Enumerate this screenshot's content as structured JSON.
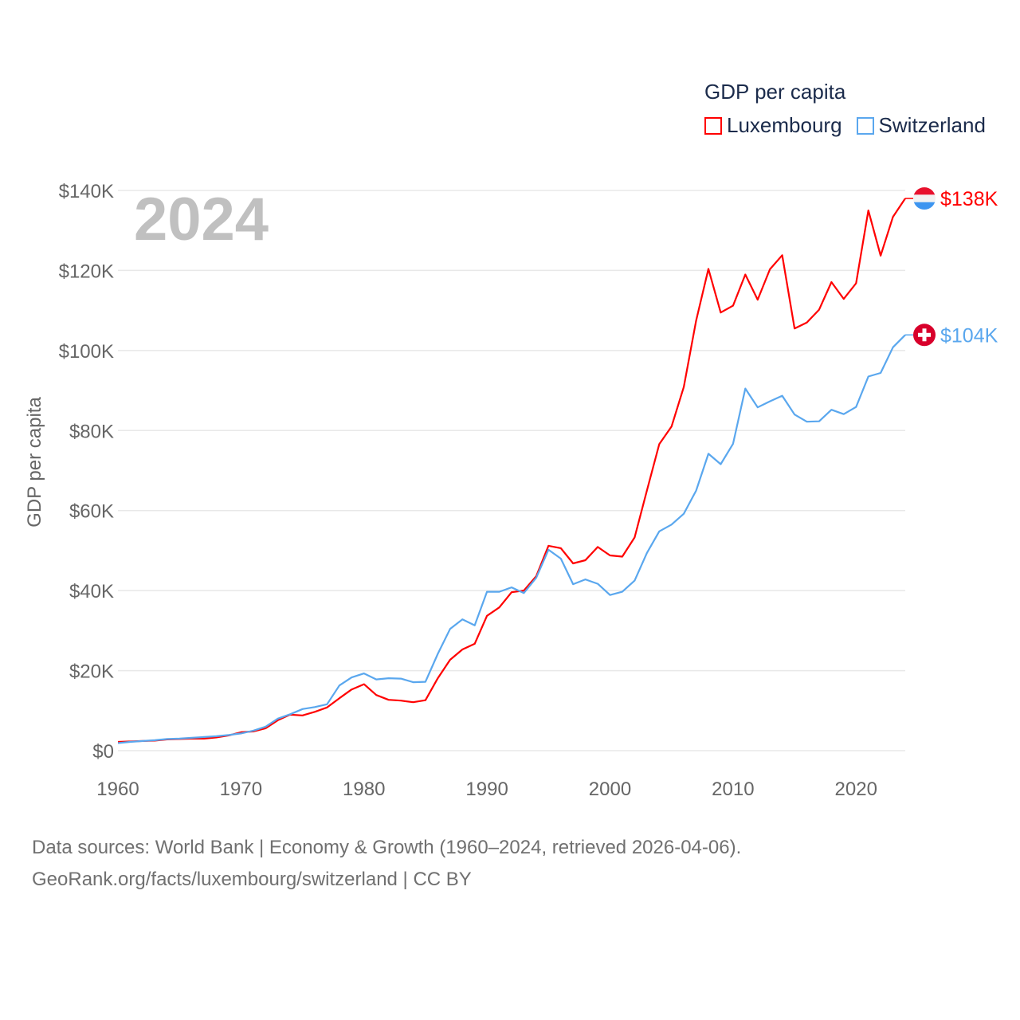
{
  "chart_data": {
    "type": "line",
    "title": "GDP per capita",
    "xlabel": "",
    "ylabel": "GDP per capita",
    "year_overlay": "2024",
    "xlim": [
      1960,
      2024
    ],
    "ylim": [
      0,
      140
    ],
    "x_ticks": [
      1960,
      1970,
      1980,
      1990,
      2000,
      2010,
      2020
    ],
    "x_tick_labels": [
      "1960",
      "1970",
      "1980",
      "1990",
      "2000",
      "2010",
      "2020"
    ],
    "y_ticks": [
      0,
      20,
      40,
      60,
      80,
      100,
      120,
      140
    ],
    "y_tick_labels": [
      "$0",
      "$20K",
      "$40K",
      "$60K",
      "$80K",
      "$100K",
      "$120K",
      "$140K"
    ],
    "grid": true,
    "legend_placement": "top-right",
    "x": [
      1960,
      1961,
      1962,
      1963,
      1964,
      1965,
      1966,
      1967,
      1968,
      1969,
      1970,
      1971,
      1972,
      1973,
      1974,
      1975,
      1976,
      1977,
      1978,
      1979,
      1980,
      1981,
      1982,
      1983,
      1984,
      1985,
      1986,
      1987,
      1988,
      1989,
      1990,
      1991,
      1992,
      1993,
      1994,
      1995,
      1996,
      1997,
      1998,
      1999,
      2000,
      2001,
      2002,
      2003,
      2004,
      2005,
      2006,
      2007,
      2008,
      2009,
      2010,
      2011,
      2012,
      2013,
      2014,
      2015,
      2016,
      2017,
      2018,
      2019,
      2020,
      2021,
      2022,
      2023,
      2024
    ],
    "series": [
      {
        "name": "Luxembourg",
        "color": "#ff0000",
        "end_label": "$138K",
        "flag": "luxembourg-flag",
        "values": [
          2.2,
          2.3,
          2.4,
          2.5,
          2.8,
          2.9,
          3.0,
          3.0,
          3.3,
          3.8,
          4.6,
          4.8,
          5.6,
          7.6,
          9.0,
          8.8,
          9.7,
          10.8,
          13.1,
          15.3,
          16.6,
          13.9,
          12.7,
          12.5,
          12.1,
          12.6,
          18.1,
          22.7,
          25.3,
          26.7,
          33.7,
          35.8,
          39.6,
          40.0,
          43.6,
          51.2,
          50.6,
          46.8,
          47.6,
          50.9,
          48.8,
          48.5,
          53.3,
          65.0,
          76.6,
          81.0,
          90.9,
          107.5,
          120.4,
          109.5,
          111.2,
          119.0,
          112.7,
          120.3,
          123.8,
          105.5,
          107.0,
          110.2,
          117.1,
          112.9,
          116.8,
          135.0,
          123.7,
          133.4,
          138.0
        ]
      },
      {
        "name": "Switzerland",
        "color": "#5aa7ee",
        "end_label": "$104K",
        "flag": "switzerland-flag",
        "values": [
          1.9,
          2.2,
          2.4,
          2.6,
          2.9,
          3.0,
          3.2,
          3.4,
          3.6,
          3.9,
          4.3,
          5.0,
          6.0,
          8.0,
          9.1,
          10.4,
          10.9,
          11.6,
          16.3,
          18.3,
          19.3,
          17.8,
          18.1,
          18.0,
          17.1,
          17.2,
          24.2,
          30.4,
          32.8,
          31.3,
          39.7,
          39.7,
          40.8,
          39.4,
          43.2,
          50.2,
          48.0,
          41.6,
          42.8,
          41.7,
          38.9,
          39.7,
          42.5,
          49.4,
          54.8,
          56.5,
          59.2,
          65.0,
          74.2,
          71.6,
          76.7,
          90.5,
          85.8,
          87.3,
          88.7,
          84.0,
          82.2,
          82.3,
          85.2,
          84.1,
          85.9,
          93.5,
          94.4,
          100.8,
          103.9
        ]
      }
    ]
  },
  "footer": {
    "line1": "Data sources: World Bank | Economy & Growth (1960–2024, retrieved 2026-04-06).",
    "line2": "GeoRank.org/facts/luxembourg/switzerland | CC BY"
  }
}
